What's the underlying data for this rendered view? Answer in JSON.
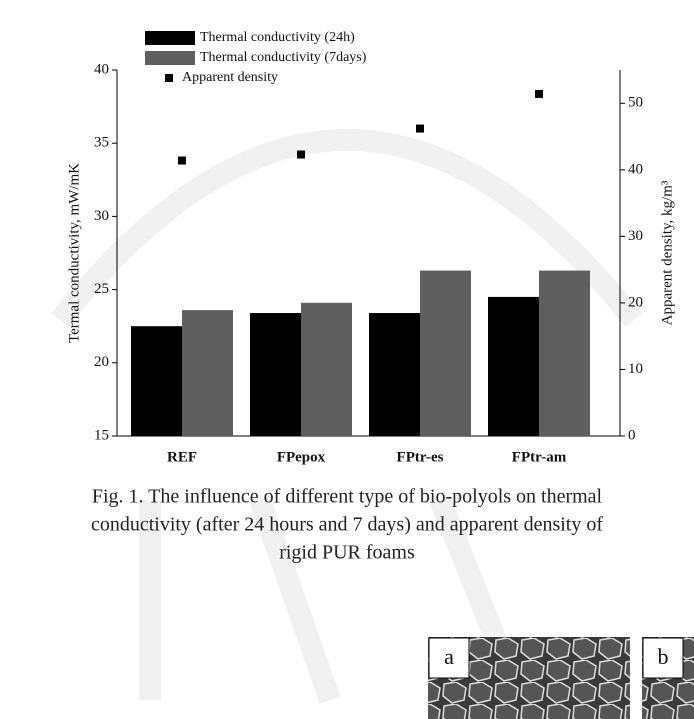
{
  "chart_data": {
    "type": "bar",
    "categories": [
      "REF",
      "FPepox",
      "FPtr-es",
      "FPtr-am"
    ],
    "series": [
      {
        "name": "Thermal conductivity (24h)",
        "color": "#000000",
        "values": [
          22.5,
          23.4,
          23.4,
          24.5
        ]
      },
      {
        "name": "Thermal conductivity (7days)",
        "color": "#5f5f5f",
        "values": [
          23.6,
          24.1,
          26.3,
          26.3
        ]
      },
      {
        "name": "Apparent density",
        "color": "#000000",
        "type": "scatter",
        "axis": "y2",
        "values": [
          41.4,
          42.3,
          46.2,
          51.4
        ]
      }
    ],
    "ylabel": "Termal conductivity, mW/mK",
    "y2label": "Apparent density, kg/m³",
    "ylim": [
      15,
      40
    ],
    "yticks": [
      15,
      20,
      25,
      30,
      35,
      40
    ],
    "y2lim": [
      0,
      55
    ],
    "y2ticks": [
      0,
      10,
      20,
      30,
      40,
      50
    ],
    "legend": "top-left"
  },
  "caption": [
    "Fig. 1. The influence of different type of bio-polyols on thermal",
    "conductivity (after 24 hours and 7 days) and apparent density of",
    "rigid PUR foams"
  ],
  "figures": [
    "a",
    "b"
  ]
}
